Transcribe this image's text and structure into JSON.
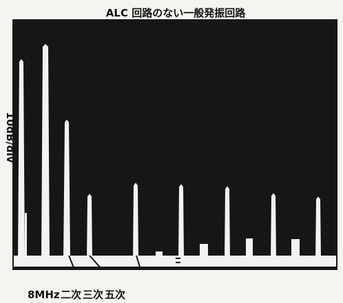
{
  "title": "ALC 回路のない一般発振回路",
  "y_axis_label": "10dB/div",
  "bottom_labels": [
    "8MHz",
    "二次",
    "三次",
    "五次"
  ]
}
